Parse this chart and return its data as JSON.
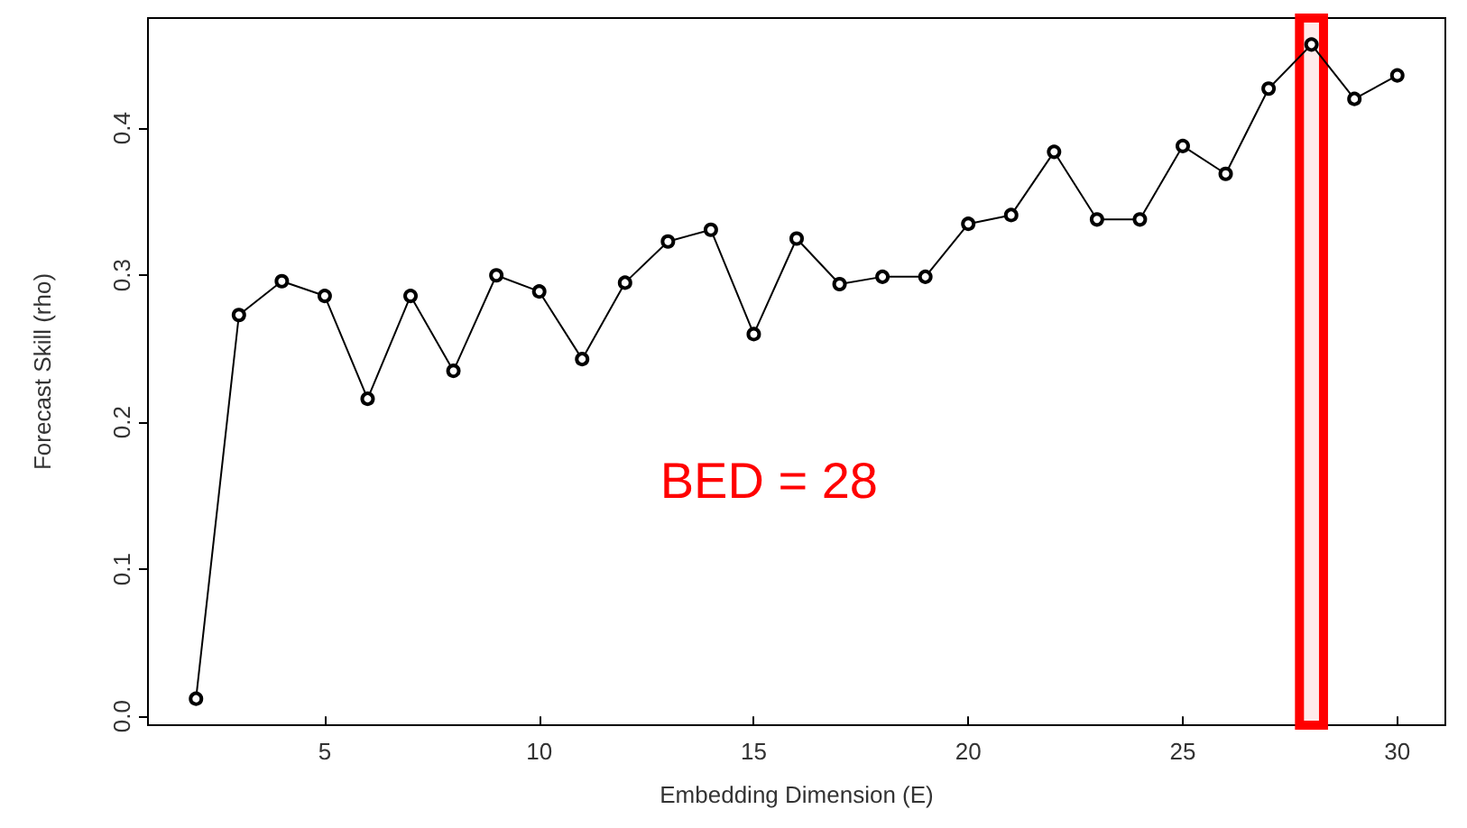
{
  "chart_data": {
    "type": "line",
    "xlabel": "Embedding Dimension (E)",
    "ylabel": "Forecast Skill (rho)",
    "x": [
      2,
      3,
      4,
      5,
      6,
      7,
      8,
      9,
      10,
      11,
      12,
      13,
      14,
      15,
      16,
      17,
      18,
      19,
      20,
      21,
      22,
      23,
      24,
      25,
      26,
      27,
      28,
      29,
      30
    ],
    "series": [
      {
        "color": "#000000",
        "values": [
          0.012,
          0.273,
          0.296,
          0.286,
          0.216,
          0.286,
          0.235,
          0.3,
          0.289,
          0.243,
          0.295,
          0.323,
          0.331,
          0.26,
          0.325,
          0.294,
          0.299,
          0.299,
          0.335,
          0.341,
          0.384,
          0.338,
          0.338,
          0.388,
          0.369,
          0.427,
          0.457,
          0.42,
          0.436
        ]
      }
    ],
    "xlim": [
      0.88,
      31.12
    ],
    "xticks": [
      5,
      10,
      15,
      20,
      25,
      30
    ],
    "ylim": [
      -0.006,
      0.475
    ],
    "yticks": [
      {
        "value": 0,
        "label": "0.0"
      },
      0.1,
      0.2,
      0.3,
      0.4
    ],
    "marker": "circle",
    "line_style": "solid",
    "grid": false,
    "bands": [
      {
        "axis": "x",
        "from": 27.72,
        "to": 28.28,
        "color": "#ff0000"
      }
    ],
    "annotations": [
      "BED = 28"
    ]
  }
}
